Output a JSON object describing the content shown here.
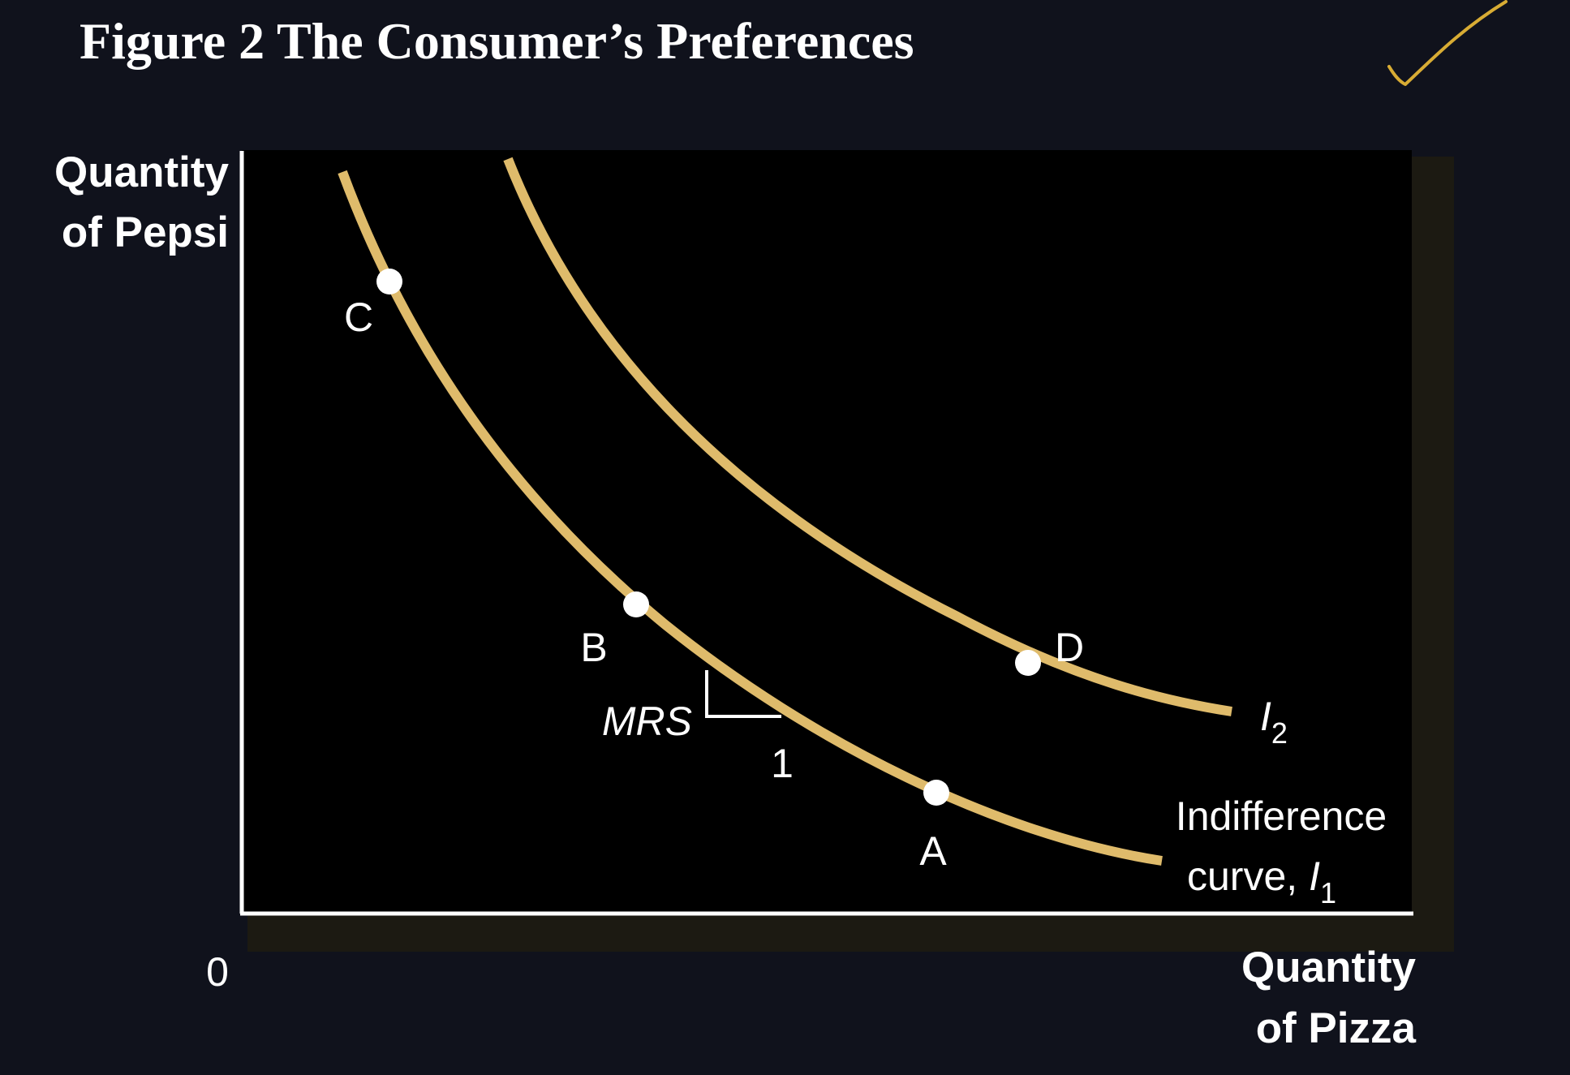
{
  "title": "Figure 2 The Consumer’s Preferences",
  "axes": {
    "y_label_line1": "Quantity",
    "y_label_line2": "of Pepsi",
    "x_label_line1": "Quantity",
    "x_label_line2": "of Pizza",
    "origin_label": "0"
  },
  "curves": {
    "i1_label_line1": "Indifference",
    "i1_label_line2_text": "curve, ",
    "i1_label_symbol": "I",
    "i1_label_subscript": "1",
    "i2_label_symbol": "I",
    "i2_label_subscript": "2"
  },
  "points": {
    "a": "A",
    "b": "B",
    "c": "C",
    "d": "D"
  },
  "mrs": {
    "label": "MRS",
    "run_label": "1"
  },
  "colors": {
    "background": "#10121c",
    "plot_area": "#000000",
    "plot_shadow": "#1c1a12",
    "curve": "#dfbb6b",
    "axis": "#ffffff",
    "point": "#ffffff",
    "checkmark": "#d8ac34"
  },
  "annotation": {
    "checkmark_icon": "handwritten-checkmark"
  }
}
